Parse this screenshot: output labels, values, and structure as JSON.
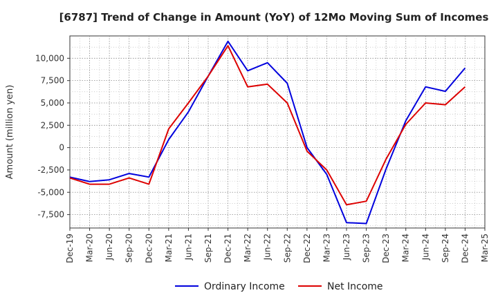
{
  "chart_data": {
    "type": "line",
    "title": "[6787]  Trend of Change in Amount (YoY) of 12Mo Moving Sum of Incomes",
    "xlabel": "",
    "ylabel": "Amount (million yen)",
    "x": [
      "Dec-19",
      "Mar-20",
      "Jun-20",
      "Sep-20",
      "Dec-20",
      "Mar-21",
      "Jun-21",
      "Sep-21",
      "Dec-21",
      "Mar-22",
      "Jun-22",
      "Sep-22",
      "Dec-22",
      "Mar-23",
      "Jun-23",
      "Sep-23",
      "Dec-23",
      "Mar-24",
      "Jun-24",
      "Sep-24",
      "Dec-24",
      "Mar-25"
    ],
    "xlim": [
      "Dec-19",
      "Mar-25"
    ],
    "ylim": [
      -9000,
      12500
    ],
    "yticks": [
      -7500,
      -5000,
      -2500,
      0,
      2500,
      5000,
      7500,
      10000
    ],
    "ytick_labels": [
      "-7,500",
      "-5,000",
      "-2,500",
      "0",
      "2,500",
      "5,000",
      "7,500",
      "10,000"
    ],
    "grid": true,
    "legend_position": "bottom",
    "series": [
      {
        "name": "Ordinary Income",
        "color": "#0000dd",
        "values": [
          -3300,
          -3800,
          -3600,
          -2900,
          -3300,
          900,
          4000,
          8000,
          11900,
          8600,
          9500,
          7200,
          0,
          -3000,
          -8400,
          -8500,
          -2400,
          3000,
          6800,
          6300,
          8900,
          null
        ]
      },
      {
        "name": "Net Income",
        "color": "#dd0000",
        "values": [
          -3400,
          -4100,
          -4100,
          -3400,
          -4100,
          2100,
          5000,
          8000,
          11400,
          6800,
          7100,
          5000,
          -400,
          -2500,
          -6400,
          -6000,
          -1300,
          2600,
          5000,
          4800,
          6800,
          null
        ]
      }
    ]
  }
}
